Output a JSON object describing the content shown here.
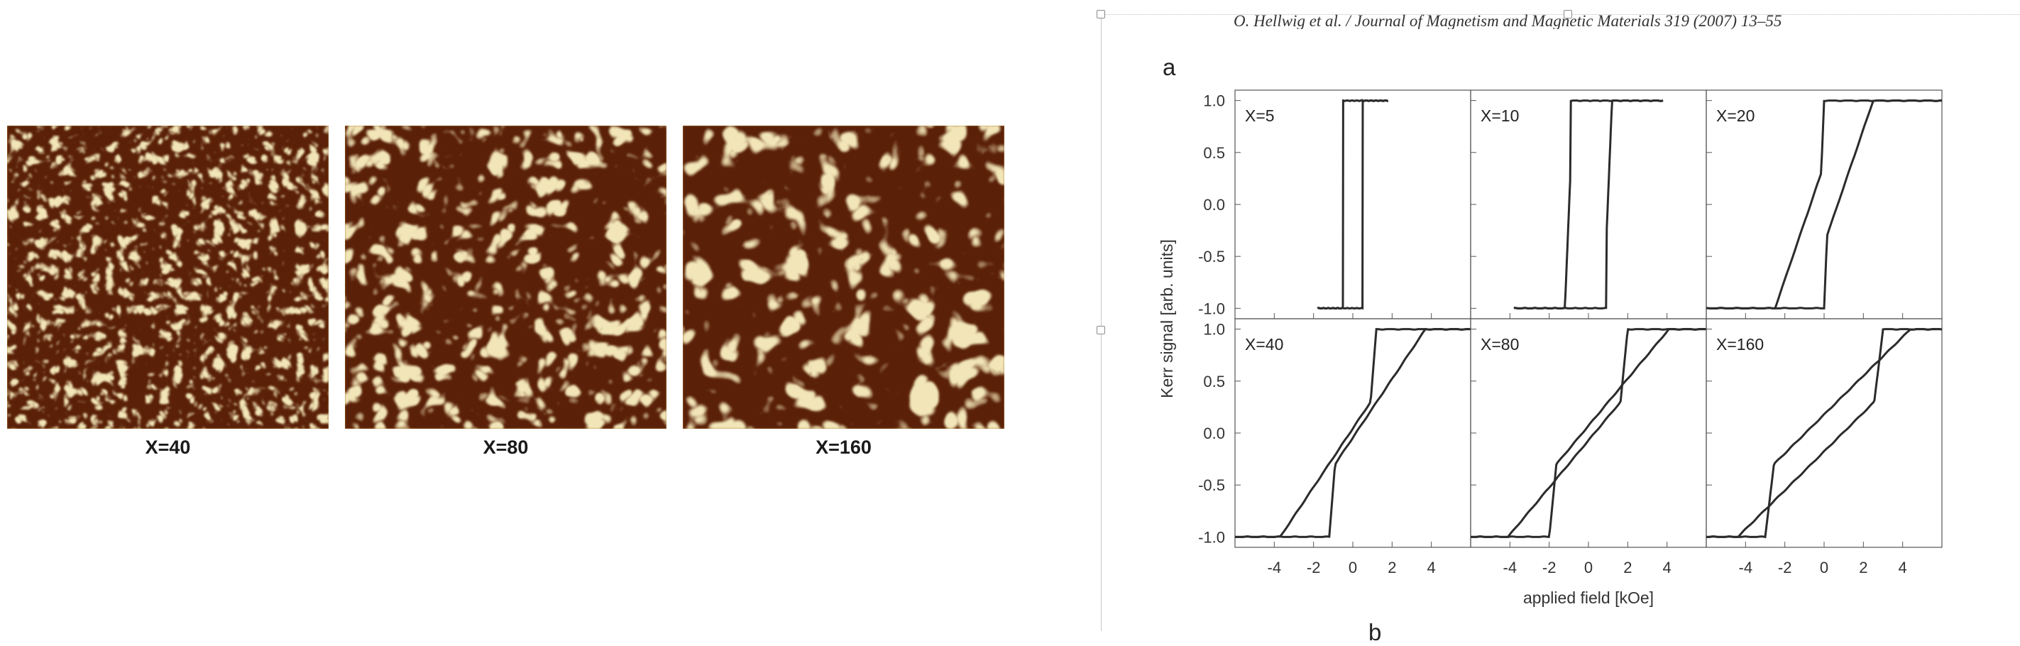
{
  "mfm_images": [
    {
      "caption": "X=40",
      "seed": 3,
      "frequency": 0.052,
      "octaves": 2,
      "contrast": 2.6
    },
    {
      "caption": "X=80",
      "seed": 11,
      "frequency": 0.03,
      "octaves": 2,
      "contrast": 3.0
    },
    {
      "caption": "X=160",
      "seed": 23,
      "frequency": 0.022,
      "octaves": 2,
      "contrast": 3.4
    }
  ],
  "mfm_palette": {
    "dark": "#5a2008",
    "mid": "#a9792c",
    "light": "#f2e6b8"
  },
  "document": {
    "running_header": "O. Hellwig et al. / Journal of Magnetism and Magnetic Materials 319 (2007) 13–55",
    "figure_label": "a",
    "next_figure_label": "b"
  },
  "chart_data": {
    "type": "line",
    "xlabel": "applied field [kOe]",
    "ylabel": "Kerr signal [arb. units]",
    "xlim": [
      -6,
      6
    ],
    "ylim": [
      -1.1,
      1.1
    ],
    "x_ticks": [
      -4,
      -2,
      0,
      2,
      4
    ],
    "y_ticks": [
      -1.0,
      -0.5,
      0.0,
      0.5,
      1.0
    ],
    "y_tick_labels": [
      "-1.0",
      "-0.5",
      "0.0",
      "0.5",
      "1.0"
    ],
    "x_tick_labels": [
      "-4",
      "-2",
      "0",
      "2",
      "4"
    ],
    "line_color": "#2b2b2b",
    "grid": false,
    "layout": "2x3 shared axes",
    "panels": [
      {
        "label": "X=5",
        "nucleation_field": 0.5,
        "saturation_field": 0.55,
        "coercive_field": 0.45,
        "x_range": [
          -1.8,
          1.8
        ]
      },
      {
        "label": "X=10",
        "nucleation_field": 0.9,
        "saturation_field": 1.2,
        "coercive_field": 0.75,
        "x_range": [
          -3.8,
          3.8
        ]
      },
      {
        "label": "X=20",
        "nucleation_field": 0.0,
        "saturation_field": 2.5,
        "coercive_field": 0.0,
        "x_range": [
          -6,
          6
        ]
      },
      {
        "label": "X=40",
        "nucleation_field": -1.2,
        "saturation_field": 3.7,
        "coercive_field": 0.0,
        "x_range": [
          -6,
          6
        ]
      },
      {
        "label": "X=80",
        "nucleation_field": -2.0,
        "saturation_field": 4.1,
        "coercive_field": 0.0,
        "x_range": [
          -6,
          6
        ]
      },
      {
        "label": "X=160",
        "nucleation_field": -3.0,
        "saturation_field": 4.4,
        "coercive_field": 0.0,
        "x_range": [
          -6,
          6
        ]
      }
    ]
  }
}
